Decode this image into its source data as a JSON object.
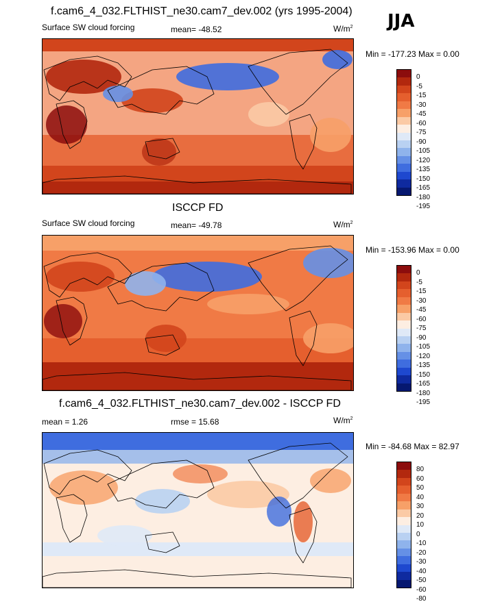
{
  "season": "JJA",
  "panels": [
    {
      "title": "f.cam6_4_032.FLTHIST_ne30.cam7_dev.002 (yrs 1995-2004)",
      "variable": "Surface SW cloud forcing",
      "stat1": "mean= -48.52",
      "stat2": "",
      "units_base": "W/m",
      "units_exp": "2",
      "minmax": "Min = -177.23 Max =   0.00",
      "colorbar_labels": [
        "0",
        "-5",
        "-15",
        "-30",
        "-45",
        "-60",
        "-75",
        "-90",
        "-105",
        "-120",
        "-135",
        "-150",
        "-165",
        "-180",
        "-195"
      ],
      "colors": [
        "#8c0d0d",
        "#b2280e",
        "#d2451c",
        "#e55f2e",
        "#f07a45",
        "#f7a068",
        "#fbcaa5",
        "#fdeee2",
        "#dfe9f7",
        "#b9d1f2",
        "#8fb3ec",
        "#6590e6",
        "#3f6ddf",
        "#1e48cf",
        "#0f2a9f",
        "#061870"
      ]
    },
    {
      "title": "ISCCP FD",
      "variable": "Surface SW cloud forcing",
      "stat1": "mean= -49.78",
      "stat2": "",
      "units_base": "W/m",
      "units_exp": "2",
      "minmax": "Min = -153.96 Max =   0.00",
      "colorbar_labels": [
        "0",
        "-5",
        "-15",
        "-30",
        "-45",
        "-60",
        "-75",
        "-90",
        "-105",
        "-120",
        "-135",
        "-150",
        "-165",
        "-180",
        "-195"
      ],
      "colors": [
        "#8c0d0d",
        "#b2280e",
        "#d2451c",
        "#e55f2e",
        "#f07a45",
        "#f7a068",
        "#fbcaa5",
        "#fdeee2",
        "#dfe9f7",
        "#b9d1f2",
        "#8fb3ec",
        "#6590e6",
        "#3f6ddf",
        "#1e48cf",
        "#0f2a9f",
        "#061870"
      ]
    },
    {
      "title": "f.cam6_4_032.FLTHIST_ne30.cam7_dev.002 - ISCCP FD",
      "variable": "",
      "stat1": "mean =   1.26",
      "stat2": "rmse =  15.68",
      "units_base": "W/m",
      "units_exp": "2",
      "minmax": "Min = -84.68 Max =  82.97",
      "colorbar_labels": [
        "80",
        "60",
        "50",
        "40",
        "30",
        "20",
        "10",
        "0",
        "-10",
        "-20",
        "-30",
        "-40",
        "-50",
        "-60",
        "-80"
      ],
      "colors": [
        "#8c0d0d",
        "#b2280e",
        "#d2451c",
        "#e55f2e",
        "#f07a45",
        "#f7a068",
        "#fbcaa5",
        "#fdeee2",
        "#dfe9f7",
        "#b9d1f2",
        "#8fb3ec",
        "#6590e6",
        "#3f6ddf",
        "#1e48cf",
        "#0f2a9f",
        "#061870"
      ]
    }
  ]
}
